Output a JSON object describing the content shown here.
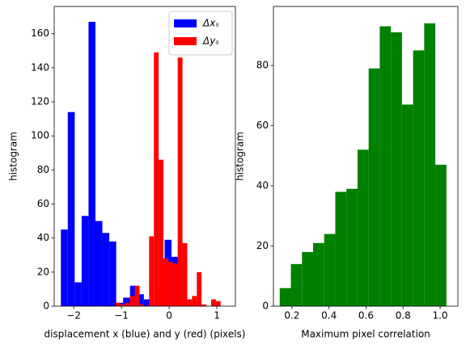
{
  "chart_data": [
    {
      "type": "histogram",
      "xlabel": "displacement x (blue) and y (red) (pixels)",
      "ylabel": "histogram",
      "xlim": [
        -2.41,
        1.39
      ],
      "ylim": [
        0,
        176
      ],
      "xticks": [
        {
          "value": -2,
          "label": "−2"
        },
        {
          "value": -1,
          "label": "−1"
        },
        0,
        1
      ],
      "yticks": [
        0,
        20,
        40,
        60,
        80,
        100,
        120,
        140,
        160
      ],
      "grid": false,
      "legend": "upper right",
      "series": [
        {
          "name": "Δxₛ",
          "color": "#0000ff",
          "bins": [
            -2.27,
            -2.125,
            -1.98,
            -1.835,
            -1.69,
            -1.545,
            -1.4,
            -1.255,
            -1.11,
            -0.965,
            -0.82,
            -0.675,
            -0.53,
            -0.385,
            -0.24,
            -0.095,
            0.05,
            0.195
          ],
          "values": [
            45,
            114,
            14,
            53,
            167,
            50,
            43,
            38,
            2,
            5,
            12,
            7,
            4,
            2,
            10,
            39,
            29
          ]
        },
        {
          "name": "Δyₛ",
          "color": "#ff0000",
          "bins": [
            -1.12,
            -1.02,
            -0.92,
            -0.82,
            -0.72,
            -0.62,
            -0.52,
            -0.42,
            -0.32,
            -0.22,
            -0.12,
            -0.02,
            0.08,
            0.18,
            0.28,
            0.38,
            0.48,
            0.58,
            0.68,
            0.78,
            0.88,
            0.98,
            1.08
          ],
          "values": [
            2,
            1,
            2,
            6,
            12,
            1,
            0,
            41,
            149,
            86,
            28,
            26,
            25,
            146,
            37,
            4,
            6,
            20,
            1,
            0,
            4,
            3
          ]
        }
      ]
    },
    {
      "type": "histogram",
      "xlabel": "Maximum pixel correlation",
      "ylabel": "histogram",
      "xlim": [
        0.1,
        1.096
      ],
      "ylim": [
        0,
        99.6
      ],
      "xticks": [
        0.2,
        0.4,
        0.6,
        0.8,
        {
          "value": 1,
          "label": "1.0"
        }
      ],
      "yticks": [
        0,
        20,
        40,
        60,
        80
      ],
      "grid": false,
      "series": [
        {
          "color": "#008000",
          "bins": [
            0.134,
            0.194,
            0.254,
            0.314,
            0.374,
            0.434,
            0.494,
            0.554,
            0.614,
            0.674,
            0.734,
            0.794,
            0.854,
            0.914,
            0.974,
            1.034
          ],
          "values": [
            6,
            14,
            18,
            21,
            24,
            38,
            39,
            52,
            79,
            93,
            91,
            67,
            85,
            94,
            47
          ]
        }
      ]
    }
  ]
}
